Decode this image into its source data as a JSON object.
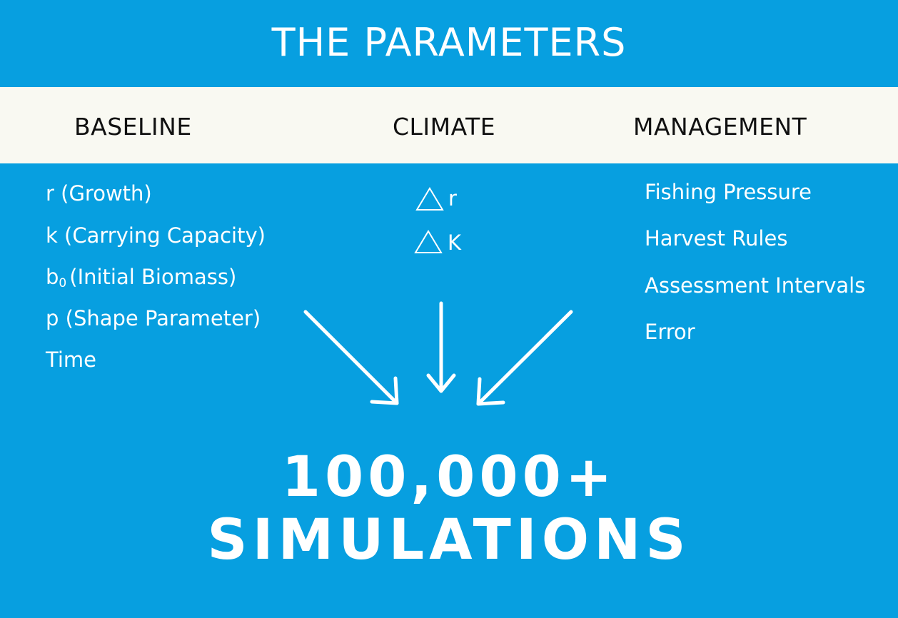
{
  "title": "THE PARAMETERS",
  "columns": {
    "baseline": {
      "heading": "BASELINE",
      "items": [
        "r (Growth)",
        "k (Carrying Capacity)",
        {
          "main": "b",
          "sub": "0",
          "rest": "(Initial Biomass)"
        },
        "p (Shape Parameter)",
        "Time"
      ]
    },
    "climate": {
      "heading": "CLIMATE",
      "items": [
        {
          "symbol": "triangle-icon",
          "label": "r"
        },
        {
          "symbol": "triangle-icon",
          "label": "K"
        }
      ]
    },
    "management": {
      "heading": "MANAGEMENT",
      "items": [
        "Fishing Pressure",
        "Harvest Rules",
        "Assessment Intervals",
        "Error"
      ]
    }
  },
  "result": {
    "line1": "100,000+",
    "line2": "SIMULATIONS"
  },
  "colors": {
    "background": "#079fe0",
    "header_band": "#f9f9f2",
    "heading_text": "#111111",
    "text": "#ffffff"
  }
}
